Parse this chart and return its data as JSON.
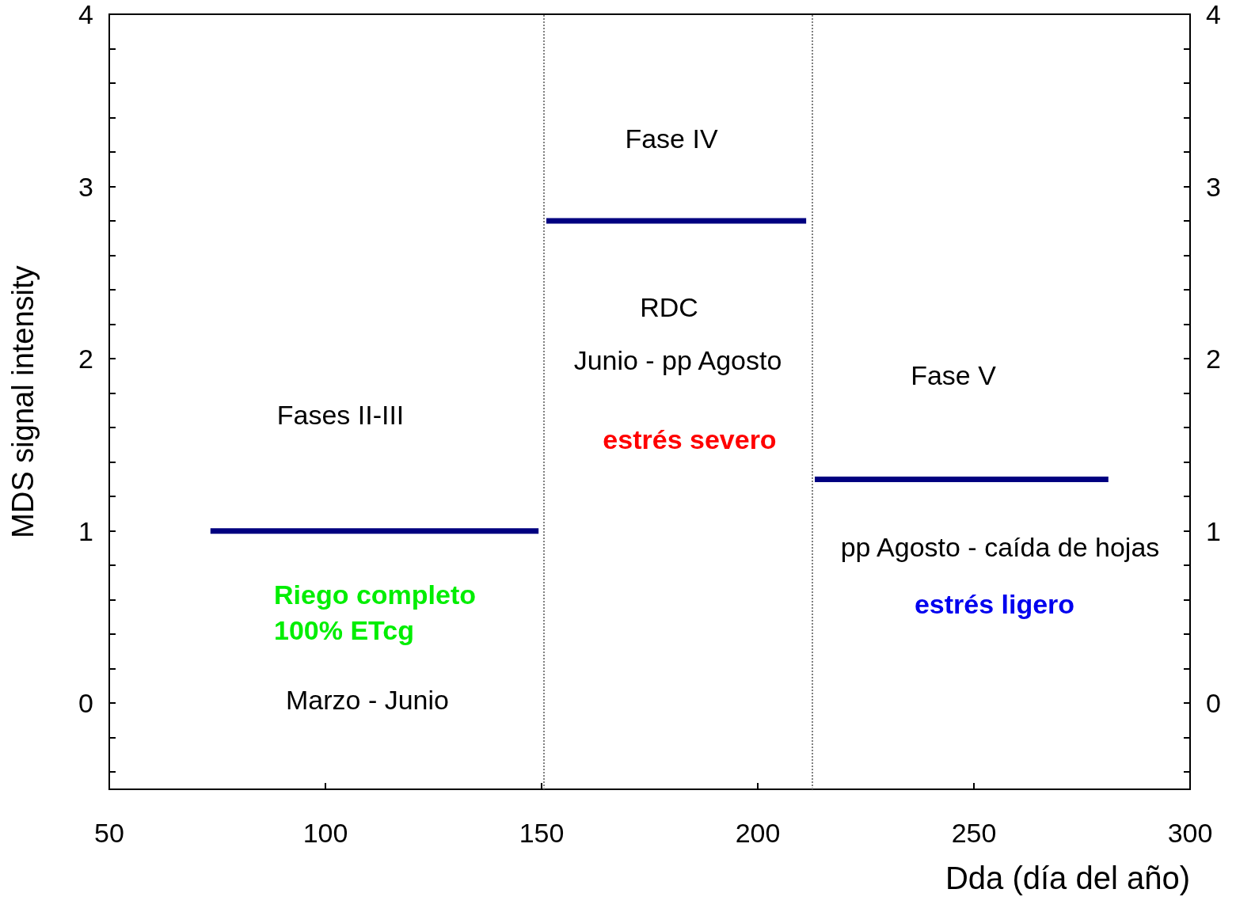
{
  "chart_data": {
    "type": "line",
    "xlabel": "Dda (día del año)",
    "ylabel": "MDS signal intensity",
    "xlim": [
      50,
      300
    ],
    "xticks": [
      50,
      100,
      150,
      200,
      250,
      300
    ],
    "ylim": [
      -0.5,
      4
    ],
    "yticks": [
      {
        "value": -0.4,
        "label": null
      },
      {
        "value": -0.2,
        "label": null
      },
      0,
      {
        "value": 0.2,
        "label": null
      },
      {
        "value": 0.4,
        "label": null
      },
      {
        "value": 0.6,
        "label": null
      },
      {
        "value": 0.8,
        "label": null
      },
      1,
      {
        "value": 1.2,
        "label": null
      },
      {
        "value": 1.4,
        "label": null
      },
      {
        "value": 1.6,
        "label": null
      },
      {
        "value": 1.8,
        "label": null
      },
      2,
      {
        "value": 2.2,
        "label": null
      },
      {
        "value": 2.4,
        "label": null
      },
      {
        "value": 2.6,
        "label": null
      },
      {
        "value": 2.8,
        "label": null
      },
      3,
      {
        "value": 3.2,
        "label": null
      },
      {
        "value": 3.4,
        "label": null
      },
      {
        "value": 3.6,
        "label": null
      },
      {
        "value": 3.8,
        "label": null
      },
      4
    ],
    "y2lim": [
      -0.5,
      4
    ],
    "y2ticks": [
      {
        "value": -0.4,
        "label": null
      },
      {
        "value": -0.2,
        "label": null
      },
      0,
      {
        "value": 0.2,
        "label": null
      },
      {
        "value": 0.4,
        "label": null
      },
      {
        "value": 0.6,
        "label": null
      },
      {
        "value": 0.8,
        "label": null
      },
      1,
      {
        "value": 1.2,
        "label": null
      },
      {
        "value": 1.4,
        "label": null
      },
      {
        "value": 1.6,
        "label": null
      },
      {
        "value": 1.8,
        "label": null
      },
      2,
      {
        "value": 2.2,
        "label": null
      },
      {
        "value": 2.4,
        "label": null
      },
      {
        "value": 2.6,
        "label": null
      },
      {
        "value": 2.8,
        "label": null
      },
      3,
      {
        "value": 3.2,
        "label": null
      },
      {
        "value": 3.4,
        "label": null
      },
      {
        "value": 3.6,
        "label": null
      },
      {
        "value": 3.8,
        "label": null
      },
      4
    ],
    "series": [
      {
        "color": "#000080",
        "x": [
          73.4,
          149.3
        ],
        "values": [
          1,
          1
        ]
      },
      {
        "color": "#000080",
        "x": [
          151.1,
          211.2
        ],
        "values": [
          2.8,
          2.8
        ]
      },
      {
        "color": "#000080",
        "x": [
          213.2,
          281.1
        ],
        "values": [
          1.3,
          1.3
        ]
      }
    ],
    "ref_lines": [
      {
        "axis": "x",
        "value": 150.5,
        "color": "#808080",
        "line_style": "dotted"
      },
      {
        "axis": "x",
        "value": 212.5,
        "color": "#808080",
        "line_style": "dotted"
      }
    ],
    "annotations": [
      "Fase IV",
      "RDC",
      "Junio - pp Agosto",
      "estrés severo",
      "Fases II-III",
      "Riego completo\n100% ETcg",
      "Marzo - Junio",
      "Fase V",
      "pp Agosto - caída de hojas",
      "estrés ligero"
    ],
    "grid": false,
    "marker": "none",
    "line_style": "solid"
  }
}
